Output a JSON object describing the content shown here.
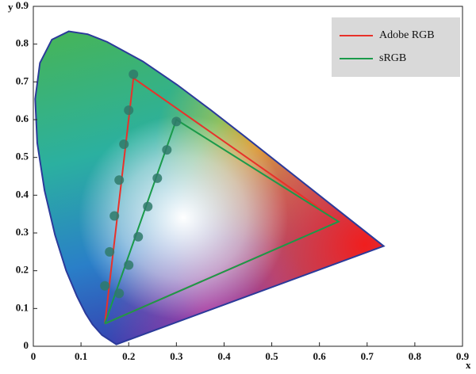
{
  "chart_data": {
    "type": "chromaticity",
    "xlabel": "x",
    "ylabel": "y",
    "xlim": [
      0,
      0.9
    ],
    "ylim": [
      0,
      0.9
    ],
    "xticks": [
      0,
      0.1,
      0.2,
      0.3,
      0.4,
      0.5,
      0.6,
      0.7,
      0.8,
      0.9
    ],
    "yticks": [
      0,
      0.1,
      0.2,
      0.3,
      0.4,
      0.5,
      0.6,
      0.7,
      0.8,
      0.9
    ],
    "locus_x": [
      0.1741,
      0.144,
      0.1241,
      0.1096,
      0.0913,
      0.0687,
      0.0454,
      0.0235,
      0.0082,
      0.0039,
      0.0139,
      0.0389,
      0.0743,
      0.1142,
      0.1547,
      0.2296,
      0.3016,
      0.3731,
      0.4441,
      0.5125,
      0.5752,
      0.627,
      0.6915,
      0.7347
    ],
    "locus_y": [
      0.005,
      0.0297,
      0.0578,
      0.0868,
      0.1327,
      0.2007,
      0.295,
      0.4127,
      0.5384,
      0.6548,
      0.7502,
      0.812,
      0.8338,
      0.8262,
      0.8059,
      0.7543,
      0.6923,
      0.6245,
      0.5547,
      0.4866,
      0.4242,
      0.3725,
      0.3083,
      0.2653
    ],
    "locus_color": "#2b3a9a",
    "marker_color": "#2f7a6a",
    "series": [
      {
        "name": "Adobe RGB",
        "color": "#e8312a",
        "x": [
          0.15,
          0.21,
          0.64,
          0.15
        ],
        "values": [
          0.06,
          0.71,
          0.33,
          0.06
        ],
        "marker_x": [
          0.21,
          0.2,
          0.19,
          0.18,
          0.17,
          0.16,
          0.15
        ],
        "marker_values": [
          0.72,
          0.625,
          0.535,
          0.44,
          0.345,
          0.25,
          0.16
        ]
      },
      {
        "name": "sRGB",
        "color": "#1a9a4a",
        "x": [
          0.15,
          0.3,
          0.64,
          0.15
        ],
        "values": [
          0.06,
          0.6,
          0.33,
          0.06
        ],
        "marker_x": [
          0.3,
          0.28,
          0.26,
          0.24,
          0.22,
          0.2,
          0.18
        ],
        "marker_values": [
          0.595,
          0.52,
          0.445,
          0.37,
          0.29,
          0.215,
          0.14
        ]
      }
    ],
    "legend": "upper right"
  }
}
